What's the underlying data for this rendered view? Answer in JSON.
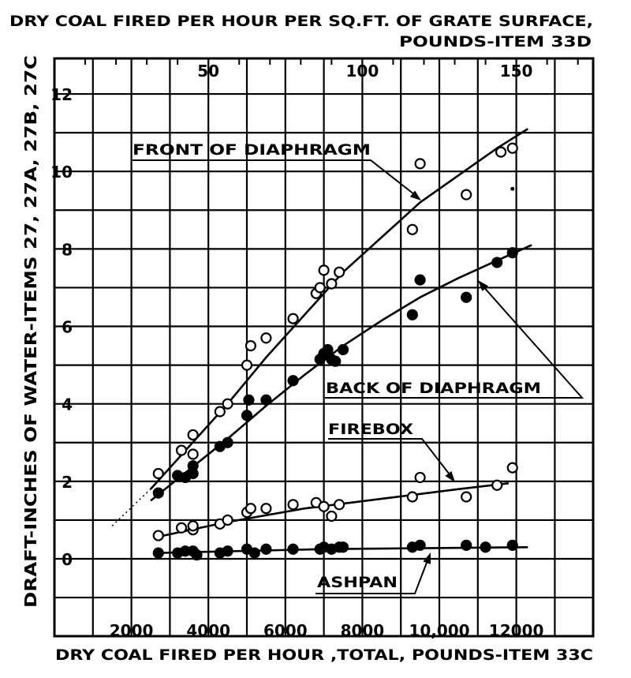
{
  "chart_data": {
    "type": "scatter",
    "top_title_line1": "DRY COAL FIRED PER HOUR PER SQ.FT. OF GRATE SURFACE,",
    "top_title_line2": "POUNDS-ITEM 33D",
    "xlabel": "DRY COAL FIRED PER HOUR ,TOTAL, POUNDS-ITEM 33C",
    "ylabel": "DRAFT-INCHES OF WATER-ITEMS 27, 27A, 27B, 27C",
    "xlim": [
      0,
      14000
    ],
    "ylim": [
      -2,
      12.5
    ],
    "x_ticks": [
      2000,
      4000,
      6000,
      8000,
      10000,
      12000
    ],
    "x_tick_labels": [
      "2000",
      "4000",
      "6000",
      "8000",
      "10,000",
      "12000"
    ],
    "y_ticks": [
      0,
      2,
      4,
      6,
      8,
      10,
      12
    ],
    "y_tick_labels": [
      "0",
      "2",
      "4",
      "6",
      "8",
      "10",
      "12"
    ],
    "top_ticks": [
      50,
      100,
      150
    ],
    "top_tick_labels": [
      "50",
      "100",
      "150"
    ],
    "top_axis_factor": 80,
    "grid": true,
    "series": [
      {
        "name": "FRONT OF DIAPHRAGM",
        "marker": "open",
        "points": [
          [
            2700,
            2.2
          ],
          [
            3300,
            2.8
          ],
          [
            3600,
            2.7
          ],
          [
            3600,
            3.2
          ],
          [
            4300,
            3.8
          ],
          [
            4500,
            4.0
          ],
          [
            5000,
            5.0
          ],
          [
            5100,
            5.5
          ],
          [
            5500,
            5.7
          ],
          [
            6200,
            6.2
          ],
          [
            6800,
            6.85
          ],
          [
            6900,
            7.0
          ],
          [
            7000,
            7.45
          ],
          [
            7200,
            7.1
          ],
          [
            7400,
            7.4
          ],
          [
            9300,
            8.5
          ],
          [
            9500,
            10.2
          ],
          [
            10700,
            9.4
          ],
          [
            11600,
            10.5
          ],
          [
            11900,
            10.6
          ]
        ],
        "curve": [
          [
            2500,
            1.8
          ],
          [
            3500,
            2.9
          ],
          [
            4500,
            4.0
          ],
          [
            5500,
            5.2
          ],
          [
            6500,
            6.3
          ],
          [
            7500,
            7.4
          ],
          [
            8500,
            8.3
          ],
          [
            9500,
            9.2
          ],
          [
            10500,
            9.9
          ],
          [
            11500,
            10.6
          ],
          [
            12300,
            11.1
          ]
        ]
      },
      {
        "name": "BACK OF DIAPHRAGM",
        "marker": "filled",
        "points": [
          [
            2700,
            1.7
          ],
          [
            3200,
            2.15
          ],
          [
            3400,
            2.1
          ],
          [
            3600,
            2.2
          ],
          [
            3600,
            2.4
          ],
          [
            4300,
            2.9
          ],
          [
            4500,
            3.0
          ],
          [
            5000,
            3.7
          ],
          [
            5050,
            4.1
          ],
          [
            5500,
            4.1
          ],
          [
            6200,
            4.6
          ],
          [
            6900,
            5.15
          ],
          [
            7000,
            5.3
          ],
          [
            7100,
            5.4
          ],
          [
            7200,
            5.15
          ],
          [
            7300,
            5.1
          ],
          [
            7500,
            5.4
          ],
          [
            9300,
            6.3
          ],
          [
            9500,
            7.2
          ],
          [
            10700,
            6.75
          ],
          [
            11500,
            7.65
          ],
          [
            11900,
            7.9
          ]
        ],
        "curve": [
          [
            2500,
            1.5
          ],
          [
            3500,
            2.3
          ],
          [
            4500,
            3.1
          ],
          [
            5500,
            3.95
          ],
          [
            6500,
            4.75
          ],
          [
            7500,
            5.5
          ],
          [
            8500,
            6.15
          ],
          [
            9500,
            6.75
          ],
          [
            10500,
            7.25
          ],
          [
            11500,
            7.7
          ],
          [
            12400,
            8.1
          ]
        ]
      },
      {
        "name": "FIREBOX",
        "marker": "open",
        "points": [
          [
            2700,
            0.6
          ],
          [
            3300,
            0.8
          ],
          [
            3600,
            0.75
          ],
          [
            3600,
            0.85
          ],
          [
            4300,
            0.9
          ],
          [
            4500,
            1.0
          ],
          [
            5000,
            1.2
          ],
          [
            5100,
            1.3
          ],
          [
            5500,
            1.3
          ],
          [
            6200,
            1.4
          ],
          [
            6800,
            1.45
          ],
          [
            7000,
            1.35
          ],
          [
            7200,
            1.1
          ],
          [
            7400,
            1.4
          ],
          [
            9300,
            1.6
          ],
          [
            9500,
            2.1
          ],
          [
            10700,
            1.6
          ],
          [
            11500,
            1.9
          ],
          [
            11900,
            2.35
          ]
        ],
        "curve": [
          [
            2600,
            0.55
          ],
          [
            4500,
            0.95
          ],
          [
            6500,
            1.3
          ],
          [
            8500,
            1.55
          ],
          [
            10500,
            1.8
          ],
          [
            11800,
            1.95
          ]
        ]
      },
      {
        "name": "ASHPAN",
        "marker": "filled",
        "points": [
          [
            2700,
            0.15
          ],
          [
            3200,
            0.15
          ],
          [
            3400,
            0.2
          ],
          [
            3600,
            0.2
          ],
          [
            3700,
            0.1
          ],
          [
            4300,
            0.15
          ],
          [
            4500,
            0.2
          ],
          [
            5000,
            0.25
          ],
          [
            5200,
            0.15
          ],
          [
            5500,
            0.25
          ],
          [
            6200,
            0.25
          ],
          [
            6900,
            0.25
          ],
          [
            7000,
            0.3
          ],
          [
            7200,
            0.25
          ],
          [
            7400,
            0.3
          ],
          [
            7500,
            0.3
          ],
          [
            9300,
            0.3
          ],
          [
            9500,
            0.35
          ],
          [
            10700,
            0.35
          ],
          [
            11200,
            0.3
          ],
          [
            11900,
            0.35
          ]
        ],
        "curve": [
          [
            2600,
            0.15
          ],
          [
            7000,
            0.25
          ],
          [
            12300,
            0.3
          ]
        ]
      }
    ],
    "annotations": [
      {
        "text": "FRONT OF DIAPHRAGM"
      },
      {
        "text": "BACK OF DIAPHRAGM"
      },
      {
        "text": "FIREBOX"
      },
      {
        "text": "ASHPAN"
      }
    ]
  }
}
